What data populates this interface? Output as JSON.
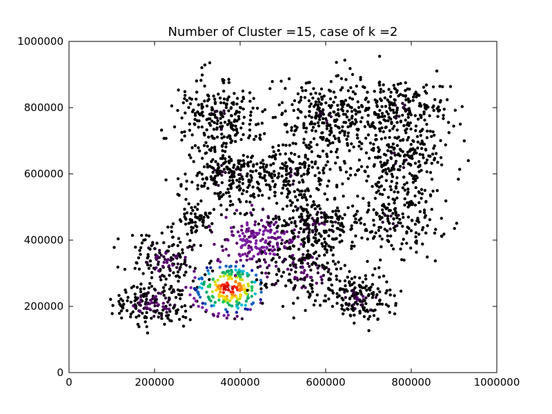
{
  "chart_data": {
    "type": "scatter",
    "title": "Number of Cluster =15, case of k =2",
    "xlabel": "",
    "ylabel": "",
    "xlim": [
      0,
      1000000
    ],
    "ylim": [
      0,
      1000000
    ],
    "xticks": [
      0,
      200000,
      400000,
      600000,
      800000,
      1000000
    ],
    "yticks": [
      0,
      200000,
      400000,
      600000,
      800000,
      1000000
    ],
    "xtick_labels": [
      "0",
      "200000",
      "400000",
      "600000",
      "800000",
      "1000000"
    ],
    "ytick_labels": [
      "0",
      "200000",
      "400000",
      "600000",
      "800000",
      "1000000"
    ],
    "grid": false,
    "legend": "none",
    "colormap": [
      "#000000",
      "#2a0033",
      "#5a0070",
      "#7b1fa2",
      "#1020a0",
      "#1565c0",
      "#00bcd4",
      "#00a86b",
      "#22c55e",
      "#c6e000",
      "#ffd400",
      "#ff8800",
      "#ff2000",
      "#d00000",
      "#cccccc"
    ],
    "clusters": [
      {
        "cx": 195000,
        "cy": 210000,
        "sx": 45000,
        "sy": 35000,
        "n": 170,
        "level": 0.05
      },
      {
        "cx": 230000,
        "cy": 345000,
        "sx": 40000,
        "sy": 40000,
        "n": 150,
        "level": 0.05
      },
      {
        "cx": 295000,
        "cy": 460000,
        "sx": 22000,
        "sy": 18000,
        "n": 60,
        "level": 0.0
      },
      {
        "cx": 350000,
        "cy": 770000,
        "sx": 50000,
        "sy": 55000,
        "n": 240,
        "level": 0.0
      },
      {
        "cx": 365000,
        "cy": 595000,
        "sx": 50000,
        "sy": 45000,
        "n": 200,
        "level": 0.0
      },
      {
        "cx": 375000,
        "cy": 255000,
        "sx": 45000,
        "sy": 40000,
        "n": 240,
        "level": 1.0
      },
      {
        "cx": 445000,
        "cy": 400000,
        "sx": 50000,
        "sy": 40000,
        "n": 190,
        "level": 0.15
      },
      {
        "cx": 520000,
        "cy": 600000,
        "sx": 48000,
        "sy": 45000,
        "n": 190,
        "level": 0.0
      },
      {
        "cx": 545000,
        "cy": 305000,
        "sx": 50000,
        "sy": 50000,
        "n": 170,
        "level": 0.05
      },
      {
        "cx": 575000,
        "cy": 450000,
        "sx": 48000,
        "sy": 45000,
        "n": 200,
        "level": 0.02
      },
      {
        "cx": 600000,
        "cy": 770000,
        "sx": 60000,
        "sy": 55000,
        "n": 260,
        "level": 0.0
      },
      {
        "cx": 680000,
        "cy": 225000,
        "sx": 40000,
        "sy": 40000,
        "n": 160,
        "level": 0.02
      },
      {
        "cx": 760000,
        "cy": 460000,
        "sx": 55000,
        "sy": 55000,
        "n": 200,
        "level": 0.0
      },
      {
        "cx": 770000,
        "cy": 640000,
        "sx": 55000,
        "sy": 50000,
        "n": 210,
        "level": 0.0
      },
      {
        "cx": 775000,
        "cy": 790000,
        "sx": 55000,
        "sy": 55000,
        "n": 230,
        "level": 0.0
      }
    ]
  }
}
